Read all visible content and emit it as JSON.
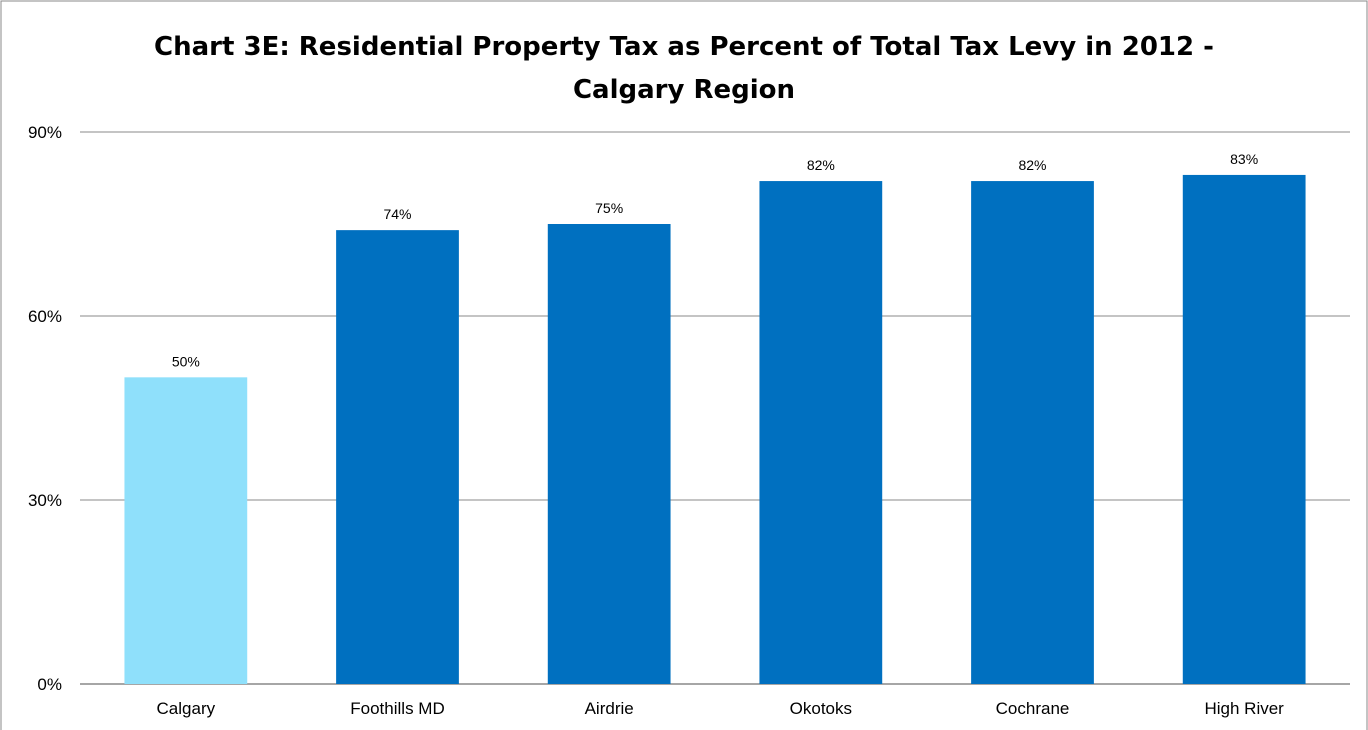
{
  "chart_data": {
    "type": "bar",
    "title_lines": [
      "Chart 3E: Residential Property Tax as Percent of Total Tax Levy in 2012 -",
      "Calgary Region"
    ],
    "categories": [
      "Calgary",
      "Foothills MD",
      "Airdrie",
      "Okotoks",
      "Cochrane",
      "High River"
    ],
    "values": [
      50,
      74,
      75,
      82,
      82,
      83
    ],
    "data_labels": [
      "50%",
      "74%",
      "75%",
      "82%",
      "82%",
      "83%"
    ],
    "ylim": [
      0,
      90
    ],
    "yticks": [
      0,
      30,
      60,
      90
    ],
    "ytick_labels": [
      "0%",
      "30%",
      "60%",
      "90%"
    ],
    "grid": true,
    "legend": "none",
    "colors": {
      "highlight": "#8FE0FB",
      "bar": "#0070C0",
      "grid": "#888888"
    },
    "highlight_index": 0
  }
}
